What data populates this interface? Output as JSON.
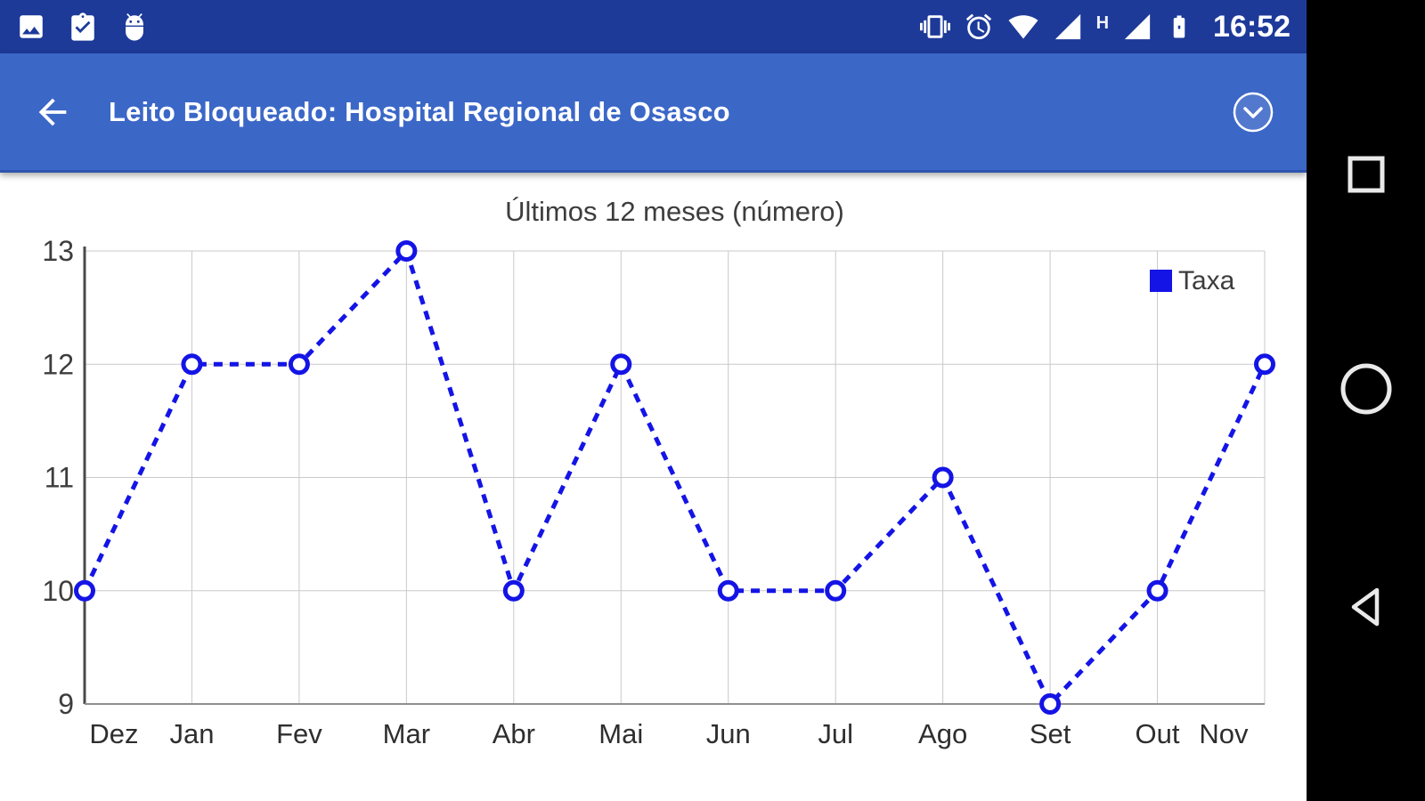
{
  "status_bar": {
    "time": "16:52",
    "hspa_label": "H",
    "left_icons": [
      "screenshot-icon",
      "assignment-done-icon",
      "adb-icon"
    ],
    "right_icons": [
      "vibrate-icon",
      "alarm-icon",
      "wifi-icon",
      "cellular-signal-icon",
      "hspa-indicator",
      "cellular-signal-2-icon",
      "battery-icon"
    ]
  },
  "app_bar": {
    "title": "Leito Bloqueado: Hospital Regional de Osasco",
    "background_color": "#3b67c7"
  },
  "chart_data": {
    "type": "line",
    "title": "Últimos 12 meses (número)",
    "categories": [
      "Dez",
      "Jan",
      "Fev",
      "Mar",
      "Abr",
      "Mai",
      "Jun",
      "Jul",
      "Ago",
      "Set",
      "Out",
      "Nov"
    ],
    "series": [
      {
        "name": "Taxa",
        "values": [
          10,
          12,
          12,
          13,
          10,
          12,
          10,
          10,
          11,
          9,
          10,
          12
        ]
      }
    ],
    "ylim": [
      9,
      13
    ],
    "yticks": [
      13,
      12,
      11,
      10,
      9
    ],
    "grid": true,
    "legend_position": "top-right",
    "line_color": "#1414e6",
    "line_style": "dashed",
    "marker": "open-circle",
    "grid_color": "#c9c9c9",
    "axis_color": "#4a4a4a",
    "label_color": "#3d3d3d"
  },
  "nav_bar": {
    "icons": [
      "recents-icon",
      "home-icon",
      "back-icon"
    ]
  }
}
